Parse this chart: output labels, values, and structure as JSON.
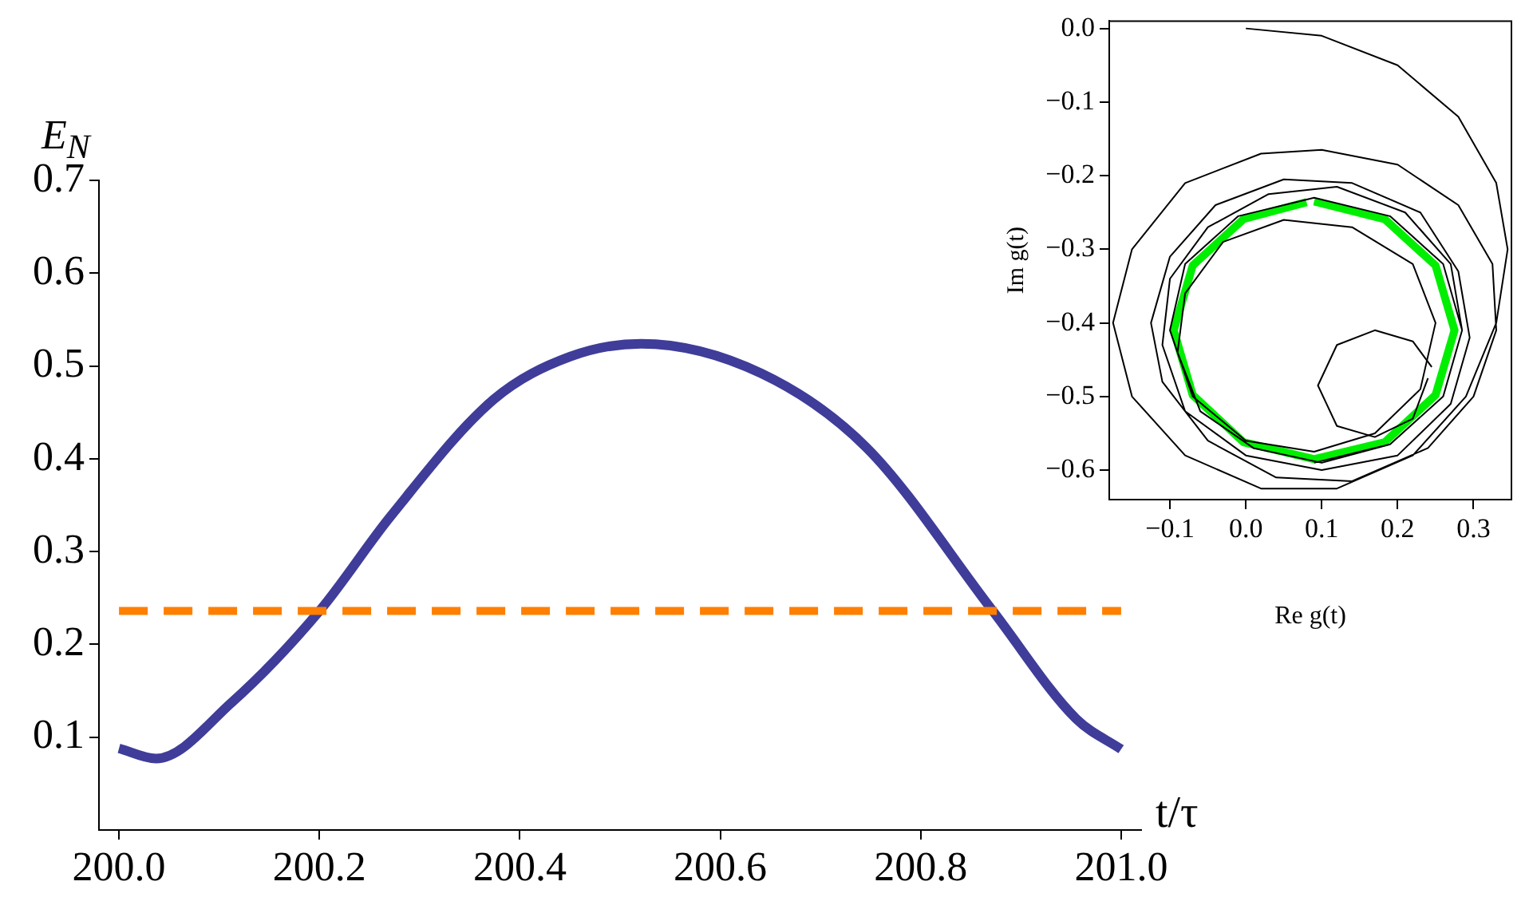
{
  "chart_data": [
    {
      "type": "line",
      "xlabel": "t/τ",
      "ylabel": "E$_{N}$",
      "x": [
        200.0,
        200.037,
        200.112,
        200.2,
        200.271,
        200.374,
        200.45,
        200.521,
        200.641,
        200.746,
        200.872,
        200.955,
        201.0
      ],
      "series": [
        {
          "color": "#3f3d99",
          "values": [
            0.088,
            0.077,
            0.137,
            0.236,
            0.338,
            0.464,
            0.51,
            0.524,
            0.492,
            0.412,
            0.236,
            0.12,
            0.087
          ]
        }
      ],
      "xlim": [
        199.98,
        201.02
      ],
      "ylim": [
        0,
        0.7
      ],
      "xticks": [
        {
          "value": 200,
          "label": "200.0"
        },
        {
          "value": 200.2,
          "label": "200.2"
        },
        {
          "value": 200.4,
          "label": "200.4"
        },
        {
          "value": 200.6,
          "label": "200.6"
        },
        {
          "value": 200.8,
          "label": "200.8"
        },
        {
          "value": 201,
          "label": "201.0"
        }
      ],
      "yticks": [
        0.1,
        0.2,
        0.3,
        0.4,
        0.5,
        0.6,
        0.7
      ],
      "ref_lines": [
        {
          "axis": "y",
          "value": 0.236,
          "color": "#ff7f00",
          "line_style": "dashed"
        }
      ],
      "grid": false,
      "legend": false
    },
    {
      "type": "line",
      "xlabel": "Re g(t)",
      "ylabel": "Im g(t)",
      "series": [
        {
          "color": "#000000",
          "x": [
            0,
            0.1,
            0.2,
            0.28,
            0.33,
            0.345,
            0.33,
            0.29,
            0.22,
            0.12,
            0.02,
            -0.08,
            -0.15,
            -0.175,
            -0.15,
            -0.08,
            0.02,
            0.1,
            0.2,
            0.28,
            0.325,
            0.33,
            0.3,
            0.24,
            0.14,
            0.04,
            -0.05,
            -0.11,
            -0.125,
            -0.1,
            -0.04,
            0.05,
            0.14,
            0.23,
            0.28,
            0.295,
            0.27,
            0.2,
            0.1,
            0,
            -0.08,
            -0.11,
            -0.1,
            -0.05,
            0.03,
            0.12,
            0.21,
            0.27,
            0.285,
            0.26,
            0.19,
            0.1,
            0.01,
            -0.06,
            -0.09,
            -0.08,
            -0.03,
            0.05,
            0.14,
            0.22,
            0.25,
            0.23,
            0.17,
            0.09,
            0.0,
            -0.07,
            -0.1,
            -0.08,
            -0.01,
            0.09,
            0.19,
            0.26,
            0.285,
            0.26,
            0.19,
            0.09
          ],
          "values": [
            0,
            -0.01,
            -0.05,
            -0.12,
            -0.21,
            -0.3,
            -0.4,
            -0.5,
            -0.58,
            -0.625,
            -0.625,
            -0.58,
            -0.5,
            -0.4,
            -0.3,
            -0.21,
            -0.17,
            -0.165,
            -0.185,
            -0.24,
            -0.32,
            -0.41,
            -0.5,
            -0.57,
            -0.615,
            -0.61,
            -0.56,
            -0.48,
            -0.4,
            -0.31,
            -0.24,
            -0.205,
            -0.21,
            -0.25,
            -0.33,
            -0.42,
            -0.51,
            -0.58,
            -0.6,
            -0.58,
            -0.52,
            -0.43,
            -0.34,
            -0.27,
            -0.225,
            -0.215,
            -0.25,
            -0.32,
            -0.41,
            -0.5,
            -0.565,
            -0.59,
            -0.57,
            -0.52,
            -0.44,
            -0.36,
            -0.29,
            -0.26,
            -0.27,
            -0.32,
            -0.4,
            -0.49,
            -0.55,
            -0.575,
            -0.56,
            -0.5,
            -0.41,
            -0.32,
            -0.255,
            -0.23,
            -0.255,
            -0.32,
            -0.41,
            -0.5,
            -0.565,
            -0.59
          ]
        },
        {
          "color": "#000000",
          "x": [
            0.245,
            0.22,
            0.17,
            0.12,
            0.095,
            0.12,
            0.17,
            0.22,
            0.24
          ],
          "values": [
            -0.46,
            -0.425,
            -0.41,
            -0.43,
            -0.485,
            -0.54,
            -0.555,
            -0.53,
            -0.475
          ]
        },
        {
          "color": "#00ee00",
          "x": [
            0.09,
            0.183,
            0.25,
            0.275,
            0.25,
            0.183,
            0.09,
            -0.003,
            -0.07,
            -0.095,
            -0.07,
            -0.003,
            0.08
          ],
          "values": [
            -0.235,
            -0.259,
            -0.322,
            -0.41,
            -0.498,
            -0.562,
            -0.585,
            -0.562,
            -0.498,
            -0.41,
            -0.322,
            -0.259,
            -0.236
          ]
        }
      ],
      "xlim": [
        -0.18,
        0.35
      ],
      "ylim": [
        -0.64,
        0.01
      ],
      "xticks": [
        {
          "value": -0.1,
          "label": "−0.1"
        },
        {
          "value": 0,
          "label": "0.0"
        },
        {
          "value": 0.1,
          "label": "0.1"
        },
        {
          "value": 0.2,
          "label": "0.2"
        },
        {
          "value": 0.3,
          "label": "0.3"
        }
      ],
      "yticks": [
        {
          "value": 0,
          "label": "0.0"
        },
        {
          "value": -0.1,
          "label": "−0.1"
        },
        {
          "value": -0.2,
          "label": "−0.2"
        },
        {
          "value": -0.3,
          "label": "−0.3"
        },
        {
          "value": -0.4,
          "label": "−0.4"
        },
        {
          "value": -0.5,
          "label": "−0.5"
        },
        {
          "value": -0.6,
          "label": "−0.6"
        }
      ],
      "grid": false,
      "legend": false
    }
  ]
}
